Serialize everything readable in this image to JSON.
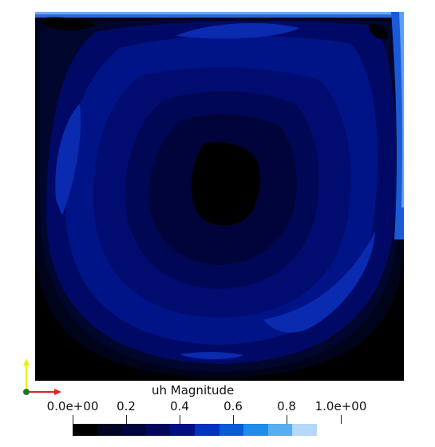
{
  "colorbar": {
    "title": "uh Magnitude",
    "min_label": "0.0e+00",
    "max_label": "1.0e+00",
    "tick_labels": [
      "0.2",
      "0.4",
      "0.6",
      "0.8"
    ],
    "tick_values": [
      0.0,
      0.2,
      0.4,
      0.6,
      0.8,
      1.0
    ],
    "bands": [
      "#000000",
      "#000524",
      "#00053e",
      "#00085c",
      "#001082",
      "#0033c0",
      "#0a5bd6",
      "#1f8bea",
      "#55aef0",
      "#b3d8f8"
    ]
  },
  "axes_triad": {
    "x_color": "#e61f1f",
    "y_color": "#eeee00",
    "origin_color": "#1f7a1f"
  }
}
